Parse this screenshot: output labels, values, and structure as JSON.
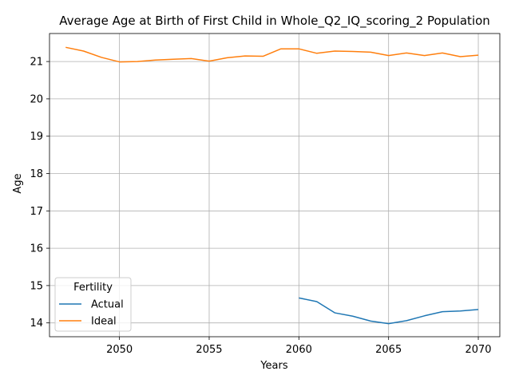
{
  "chart_data": {
    "type": "line",
    "title": "Average Age at Birth of First Child in Whole_Q2_IQ_scoring_2 Population",
    "xlabel": "Years",
    "ylabel": "Age",
    "xlim": [
      2046.1,
      2071.2
    ],
    "ylim": [
      13.63,
      21.75
    ],
    "xticks": [
      2050,
      2055,
      2060,
      2065,
      2070
    ],
    "yticks": [
      14,
      15,
      16,
      17,
      18,
      19,
      20,
      21
    ],
    "grid": true,
    "legend": {
      "title": "Fertility",
      "placement": "lower-left"
    },
    "series": [
      {
        "name": "Actual",
        "color": "#1f77b4",
        "x": [
          2060,
          2061,
          2062,
          2063,
          2064,
          2065,
          2066,
          2067,
          2068,
          2069,
          2070
        ],
        "y": [
          14.67,
          14.57,
          14.27,
          14.18,
          14.05,
          13.98,
          14.06,
          14.19,
          14.3,
          14.32,
          14.36
        ]
      },
      {
        "name": "Ideal",
        "color": "#ff7f0e",
        "x": [
          2047,
          2048,
          2049,
          2050,
          2051,
          2052,
          2053,
          2054,
          2055,
          2056,
          2057,
          2058,
          2059,
          2060,
          2061,
          2062,
          2063,
          2064,
          2065,
          2066,
          2067,
          2068,
          2069,
          2070
        ],
        "y": [
          21.38,
          21.28,
          21.11,
          20.99,
          21.0,
          21.04,
          21.06,
          21.08,
          21.01,
          21.1,
          21.15,
          21.14,
          21.34,
          21.34,
          21.22,
          21.28,
          21.27,
          21.25,
          21.16,
          21.23,
          21.16,
          21.23,
          21.13,
          21.17
        ]
      }
    ]
  }
}
